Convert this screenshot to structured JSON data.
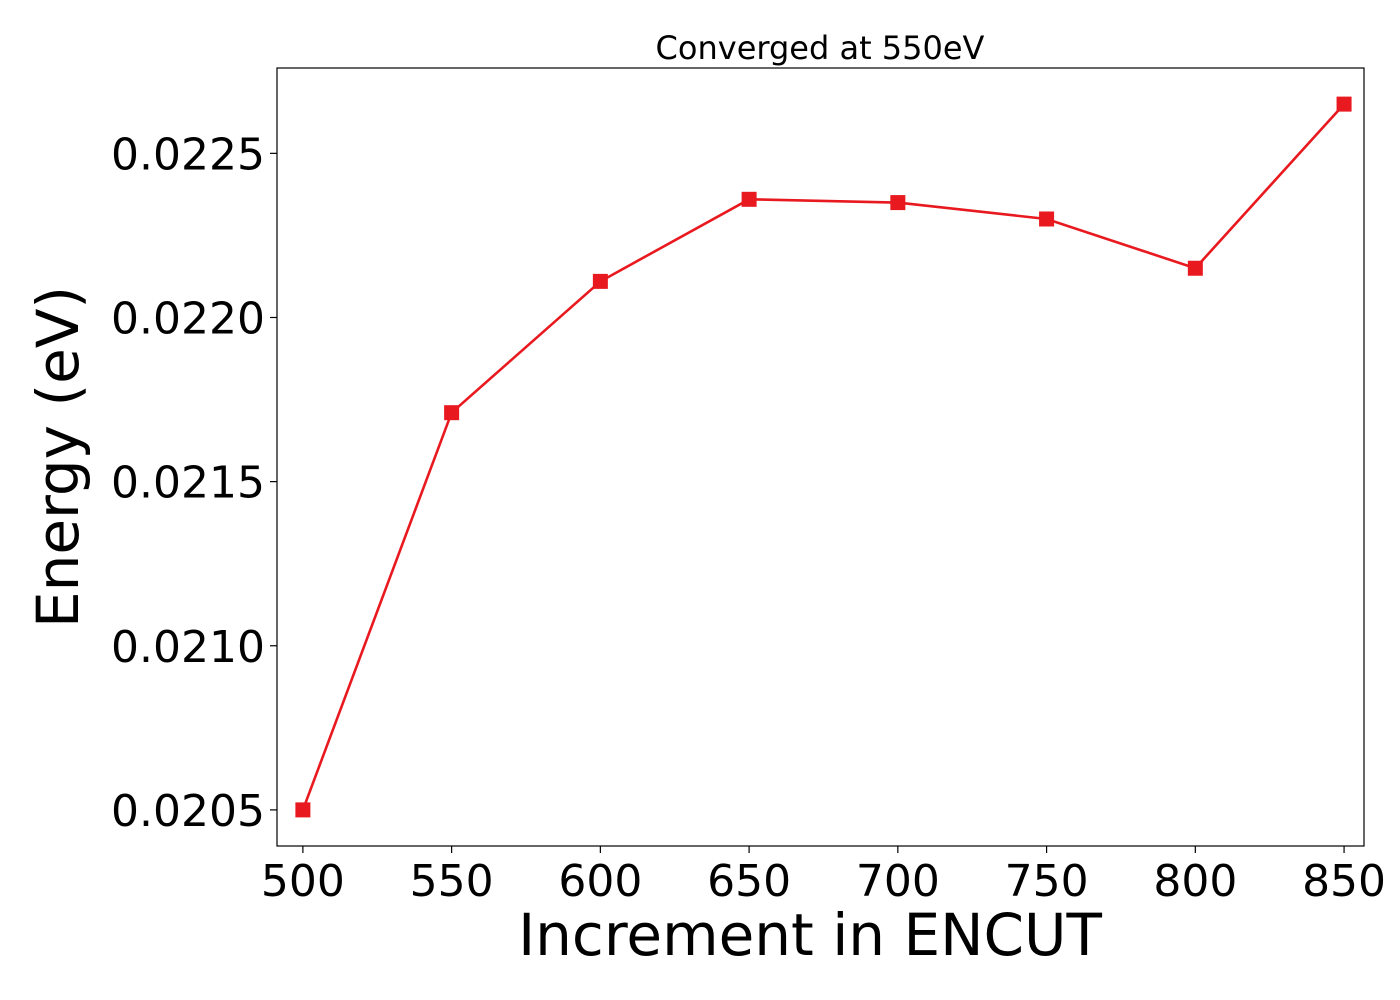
{
  "chart_data": {
    "type": "line",
    "title": "Converged at 550eV",
    "xlabel": "Increment in ENCUT",
    "ylabel": "Energy (eV)",
    "x": [
      500,
      550,
      600,
      650,
      700,
      750,
      800,
      850
    ],
    "xticks": [
      500,
      550,
      600,
      650,
      700,
      750,
      800,
      850
    ],
    "xtick_labels": [
      "500",
      "550",
      "600",
      "650",
      "700",
      "750",
      "800",
      "850"
    ],
    "yticks": [
      0.0205,
      0.021,
      0.0215,
      0.022,
      0.0225
    ],
    "ytick_labels": [
      "0.0205",
      "0.0210",
      "0.0215",
      "0.0220",
      "0.0225"
    ],
    "xlim": [
      491.3,
      856.7
    ],
    "ylim": [
      0.02039,
      0.02276
    ],
    "grid": false,
    "series": [
      {
        "color": "#e8191f",
        "marker": "square",
        "values": [
          0.0205,
          0.02171,
          0.02211,
          0.02236,
          0.02235,
          0.0223,
          0.02215,
          0.02265
        ]
      }
    ]
  }
}
